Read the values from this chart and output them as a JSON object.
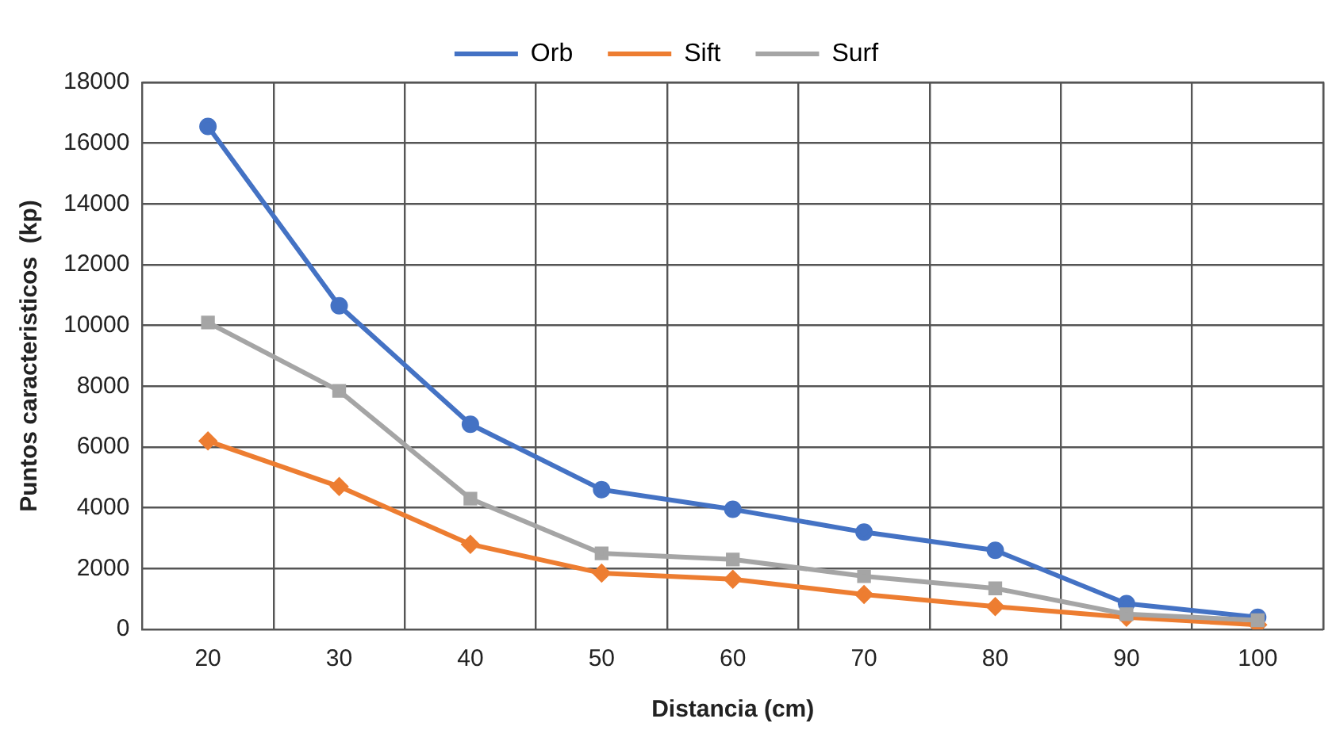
{
  "chart_data": {
    "type": "line",
    "xlabel": "Distancia (cm)",
    "ylabel": "Puntos caracteristicos  (kp)",
    "categories": [
      "20",
      "30",
      "40",
      "50",
      "60",
      "70",
      "80",
      "90",
      "100"
    ],
    "series": [
      {
        "name": "Orb",
        "color": "#4472c4",
        "marker": "circle",
        "values": [
          16550,
          10650,
          6750,
          4600,
          3950,
          3200,
          2600,
          850,
          400
        ]
      },
      {
        "name": "Sift",
        "color": "#ed7d31",
        "marker": "diamond",
        "values": [
          6200,
          4700,
          2800,
          1850,
          1650,
          1150,
          750,
          400,
          150
        ]
      },
      {
        "name": "Surf",
        "color": "#a5a5a5",
        "marker": "square",
        "values": [
          10100,
          7850,
          4300,
          2500,
          2300,
          1750,
          1350,
          500,
          300
        ]
      }
    ],
    "ylim": [
      0,
      18000
    ],
    "yticks": [
      0,
      2000,
      4000,
      6000,
      8000,
      10000,
      12000,
      14000,
      16000,
      18000
    ],
    "grid": true,
    "legend": "top",
    "line_style": "solid"
  }
}
